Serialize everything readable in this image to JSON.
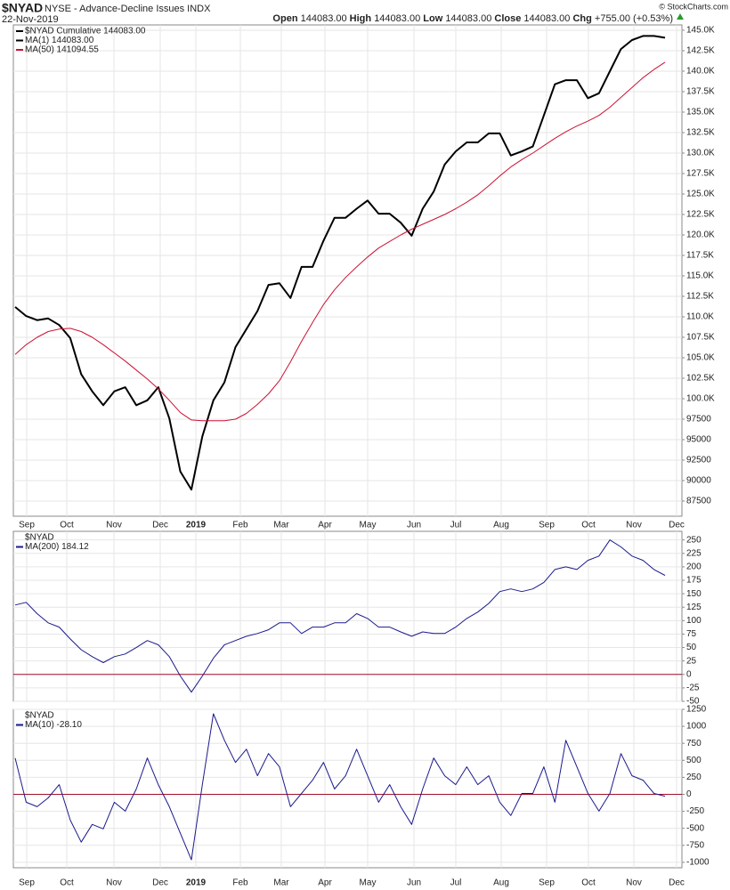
{
  "header": {
    "symbol": "$NYAD",
    "description": "NYSE - Advance-Decline Issues INDX",
    "date": "22-Nov-2019",
    "quote": [
      {
        "label": "Open",
        "value": "144083.00"
      },
      {
        "label": "High",
        "value": "144083.00"
      },
      {
        "label": "Low",
        "value": "144083.00"
      },
      {
        "label": "Close",
        "value": "144083.00"
      },
      {
        "label": "Chg",
        "value": "+755.00 (+0.53%)"
      }
    ],
    "credit": "© StockCharts.com"
  },
  "chart_data": [
    {
      "type": "line",
      "note": "MA(1) 144083.00",
      "grid": true,
      "xlabels": [
        "Sep",
        "Oct",
        "Nov",
        "Dec",
        "2019",
        "Feb",
        "Mar",
        "Apr",
        "May",
        "Jun",
        "Jul",
        "Aug",
        "Sep",
        "Oct",
        "Nov",
        "Dec"
      ],
      "ylim": [
        85650,
        145650
      ],
      "yticks": [
        {
          "value": 145000,
          "label": "145.0K"
        },
        {
          "value": 142500,
          "label": "142.5K"
        },
        {
          "value": 140000,
          "label": "140.0K"
        },
        {
          "value": 137500,
          "label": "137.5K"
        },
        {
          "value": 135000,
          "label": "135.0K"
        },
        {
          "value": 132500,
          "label": "132.5K"
        },
        {
          "value": 130000,
          "label": "130.0K"
        },
        {
          "value": 127500,
          "label": "127.5K"
        },
        {
          "value": 125000,
          "label": "125.0K"
        },
        {
          "value": 122500,
          "label": "122.5K"
        },
        {
          "value": 120000,
          "label": "120.0K"
        },
        {
          "value": 117500,
          "label": "117.5K"
        },
        {
          "value": 115000,
          "label": "115.0K"
        },
        {
          "value": 112500,
          "label": "112.5K"
        },
        {
          "value": 110000,
          "label": "110.0K"
        },
        {
          "value": 107500,
          "label": "107.5K"
        },
        {
          "value": 105000,
          "label": "105.0K"
        },
        {
          "value": 102500,
          "label": "102.5K"
        },
        {
          "value": 100000,
          "label": "100.0K"
        },
        97500,
        95000,
        92500,
        90000,
        87500
      ],
      "series": [
        {
          "name": "$NYAD Cumulative 144083.00",
          "color": "#000000",
          "width": 2,
          "values": [
            111200,
            110100,
            109600,
            109800,
            109000,
            107400,
            103000,
            100900,
            99200,
            100900,
            101400,
            99200,
            99800,
            101400,
            97600,
            91100,
            88900,
            95400,
            99800,
            102000,
            106300,
            108500,
            110700,
            113900,
            114100,
            112300,
            116100,
            116100,
            119300,
            122100,
            122100,
            123200,
            124200,
            122600,
            122600,
            121500,
            119900,
            123200,
            125300,
            128600,
            130200,
            131300,
            131300,
            132400,
            132400,
            129700,
            130200,
            130800,
            134600,
            138400,
            138900,
            138900,
            136700,
            137300,
            140000,
            142700,
            143800,
            144300,
            144300,
            144083
          ]
        },
        {
          "name": "MA(50) 141094.55",
          "color": "#cc1133",
          "width": 1,
          "values": [
            105400,
            106600,
            107500,
            108200,
            108500,
            108600,
            108200,
            107500,
            106600,
            105600,
            104600,
            103500,
            102400,
            101200,
            99800,
            98300,
            97400,
            97300,
            97300,
            97300,
            97500,
            98200,
            99300,
            100600,
            102200,
            104500,
            107000,
            109300,
            111500,
            113300,
            114800,
            116100,
            117300,
            118400,
            119200,
            120000,
            120700,
            121300,
            121900,
            122500,
            123200,
            124000,
            124900,
            126000,
            127200,
            128300,
            129200,
            130000,
            130900,
            131800,
            132600,
            133300,
            133900,
            134600,
            135600,
            136800,
            138000,
            139200,
            140200,
            141094.55
          ]
        }
      ]
    },
    {
      "type": "line",
      "title": "$NYAD",
      "grid": true,
      "zero_line": true,
      "ylim": [
        -50,
        266
      ],
      "yticks": [
        250,
        225,
        200,
        175,
        150,
        125,
        100,
        75,
        50,
        25,
        0,
        -25,
        -50
      ],
      "series": [
        {
          "name": "MA(200) 184.12",
          "color": "#1a1a8c",
          "width": 1,
          "values": [
            129,
            134,
            113,
            96,
            88,
            66,
            46,
            33,
            22,
            33,
            38,
            50,
            63,
            55,
            33,
            -3,
            -33,
            -3,
            30,
            55,
            63,
            71,
            76,
            83,
            96,
            96,
            76,
            88,
            88,
            96,
            96,
            113,
            104,
            88,
            88,
            79,
            71,
            79,
            76,
            76,
            88,
            104,
            116,
            132,
            154,
            159,
            154,
            159,
            171,
            195,
            200,
            195,
            212,
            220,
            250,
            237,
            220,
            212,
            195,
            184.12
          ]
        }
      ]
    },
    {
      "type": "line",
      "title": "$NYAD",
      "grid": true,
      "zero_line": true,
      "xlabels": [
        "Sep",
        "Oct",
        "Nov",
        "Dec",
        "2019",
        "Feb",
        "Mar",
        "Apr",
        "May",
        "Jun",
        "Jul",
        "Aug",
        "Sep",
        "Oct",
        "Nov",
        "Dec"
      ],
      "ylim": [
        -1080,
        1250
      ],
      "yticks": [
        1250,
        1000,
        750,
        500,
        250,
        0,
        -250,
        -500,
        -750,
        -1000
      ],
      "series": [
        {
          "name": "MA(10) -28.10",
          "color": "#1a1a8c",
          "width": 1,
          "values": [
            534,
            -117,
            -182,
            -52,
            143,
            -378,
            -703,
            -443,
            -508,
            -117,
            -247,
            78,
            534,
            143,
            -182,
            -573,
            -964,
            143,
            1185,
            794,
            469,
            664,
            273,
            599,
            404,
            -182,
            13,
            208,
            469,
            78,
            273,
            664,
            273,
            -117,
            143,
            -182,
            -443,
            78,
            534,
            273,
            143,
            404,
            143,
            273,
            -117,
            -312,
            13,
            13,
            404,
            -117,
            794,
            404,
            13,
            -247,
            13,
            599,
            273,
            208,
            13,
            -28.1
          ]
        }
      ]
    }
  ]
}
